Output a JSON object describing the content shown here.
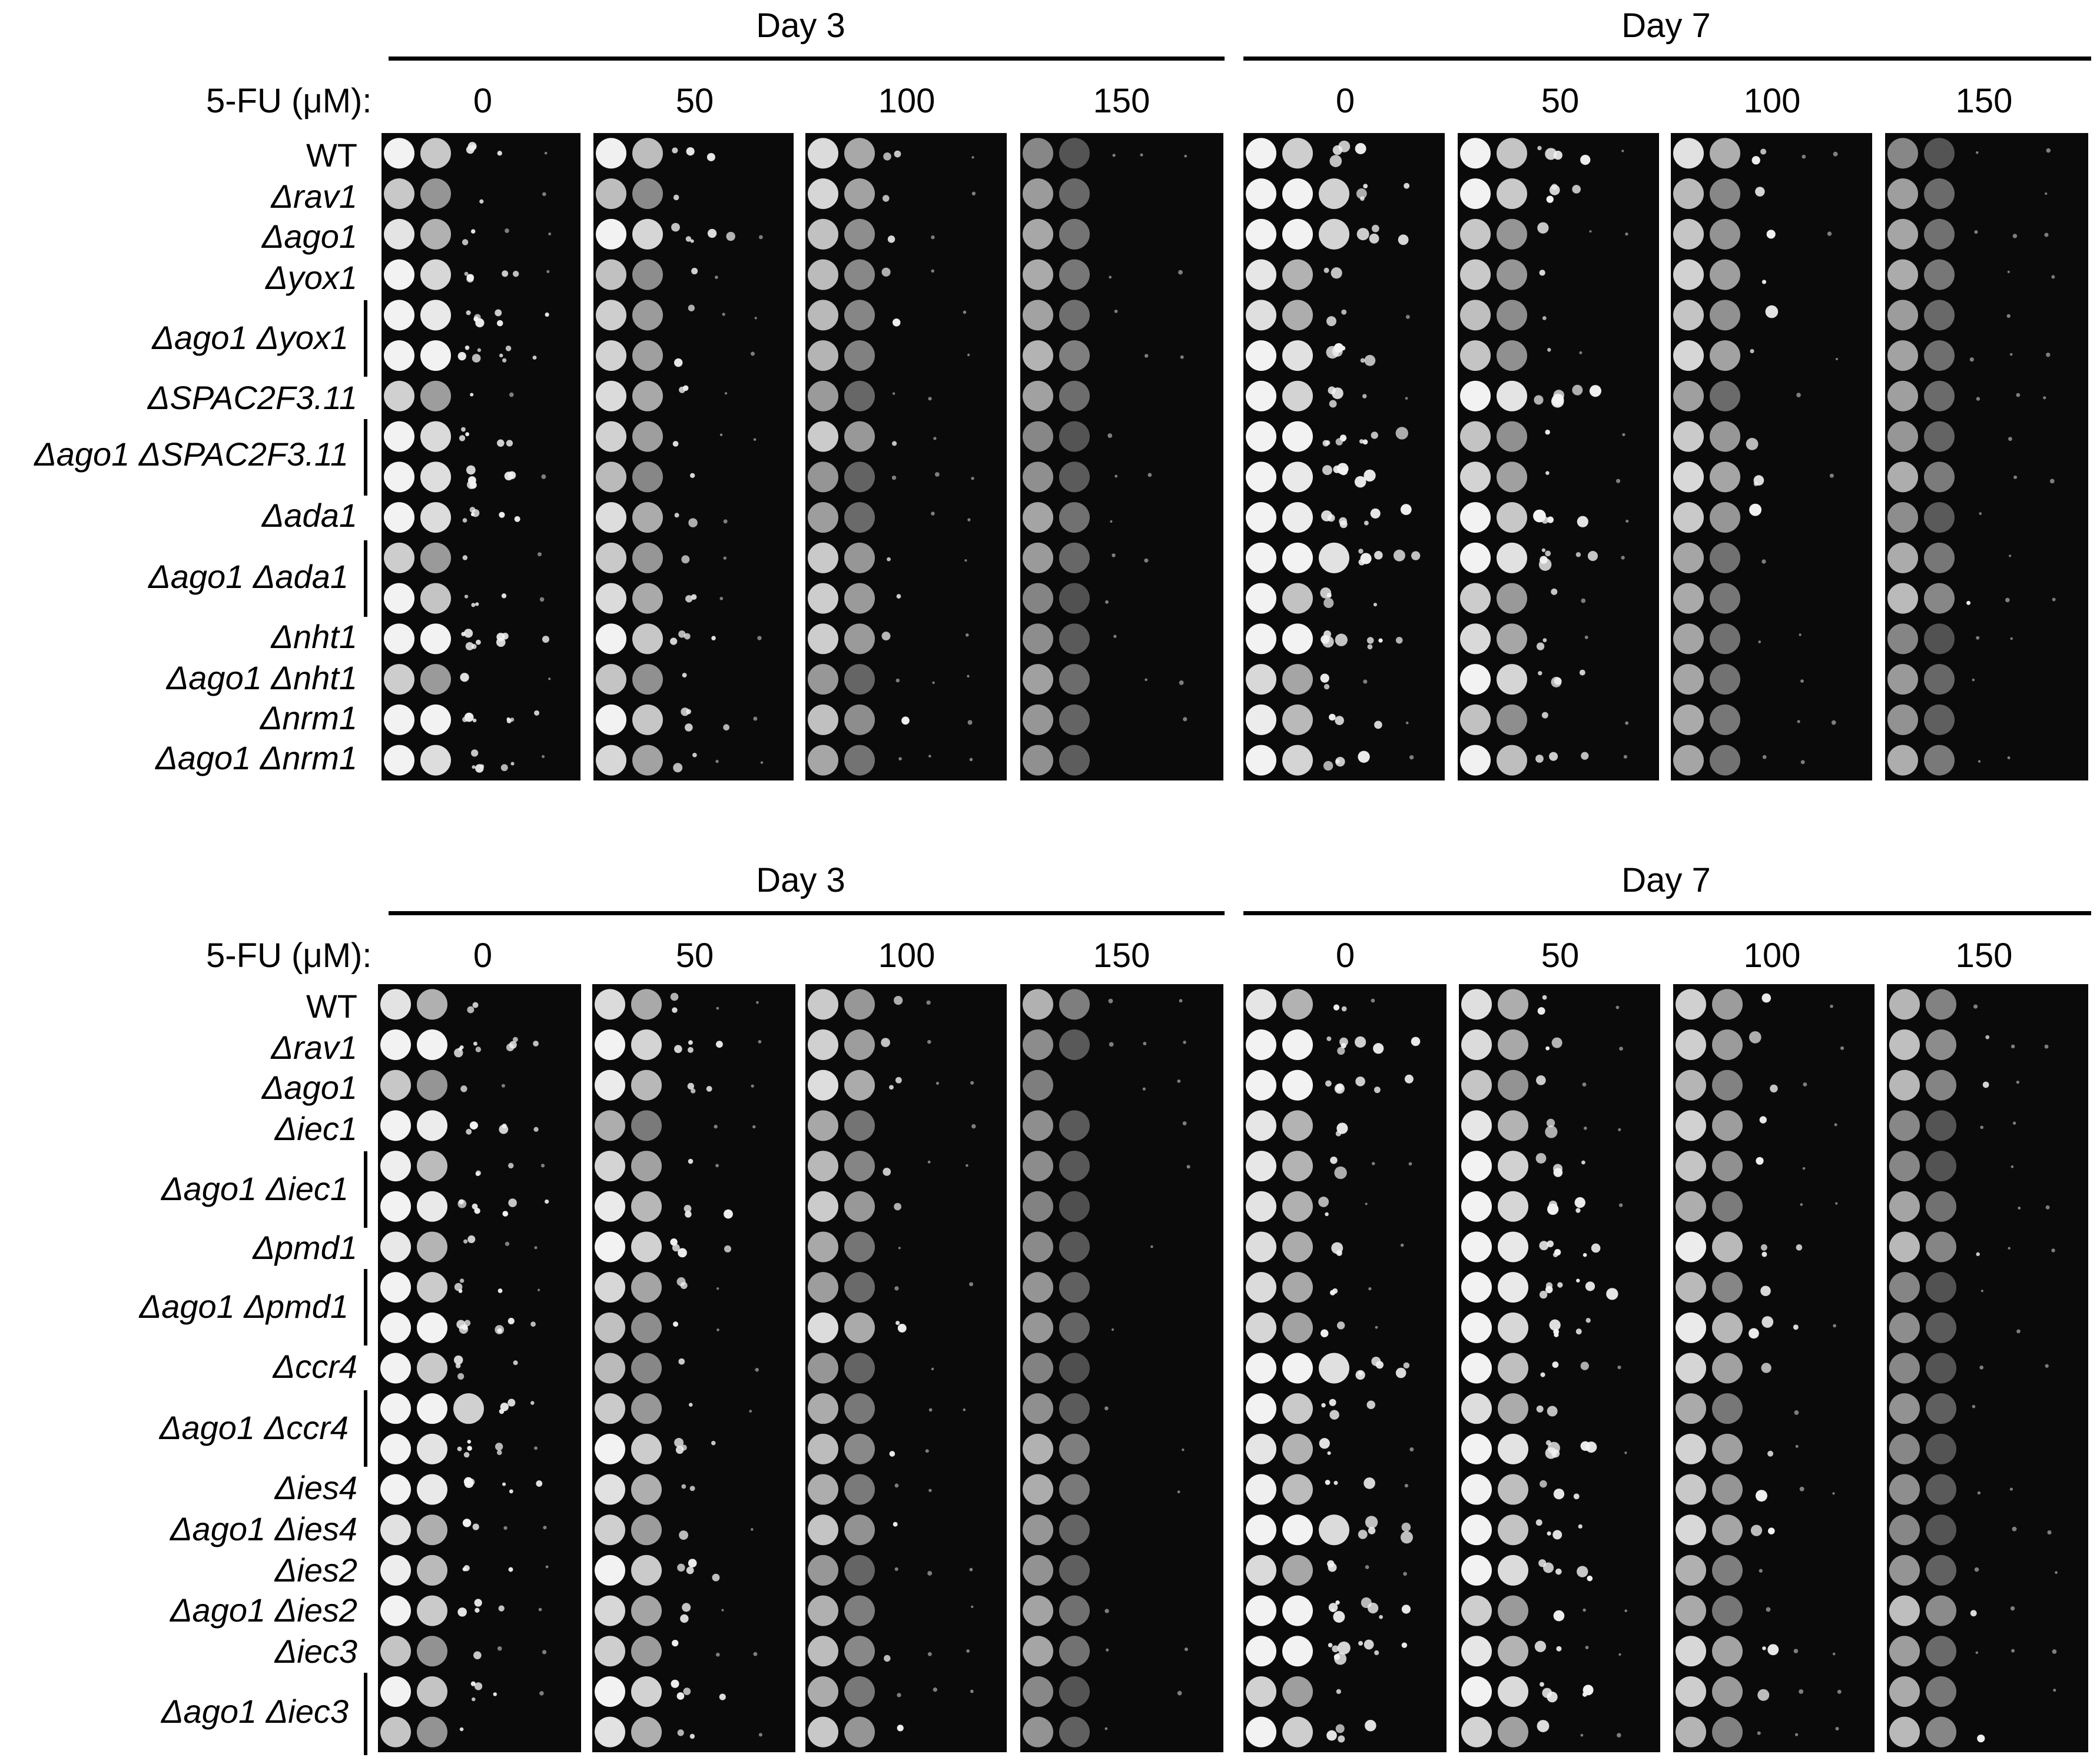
{
  "figure": {
    "colors": {
      "plate_background": "#0a0a0a",
      "colony": "#f2f2f2",
      "text": "#000000"
    },
    "treatment_label": "5-FU (μM):",
    "panels": [
      {
        "id": "top",
        "day_headers": [
          "Day 3",
          "Day 7"
        ],
        "concentrations": [
          "0",
          "50",
          "100",
          "150"
        ],
        "strain_labels": [
          {
            "text": "WT",
            "italic": false
          },
          {
            "text": "Δrav1",
            "italic": true
          },
          {
            "text": "Δago1",
            "italic": true
          },
          {
            "text": "Δyox1",
            "italic": true
          },
          {
            "text": "Δago1 Δyox1",
            "italic": true
          },
          {
            "text": "ΔSPAC2F3.11",
            "italic": true
          },
          {
            "text": "Δago1 ΔSPAC2F3.11",
            "italic": true
          },
          {
            "text": "Δada1",
            "italic": true
          },
          {
            "text": "Δago1 Δada1",
            "italic": true
          },
          {
            "text": "Δnht1",
            "italic": true
          },
          {
            "text": "Δago1 Δnht1",
            "italic": true
          },
          {
            "text": "Δnrm1",
            "italic": true
          },
          {
            "text": "Δago1 Δnrm1",
            "italic": true
          }
        ]
      },
      {
        "id": "bottom",
        "day_headers": [
          "Day 3",
          "Day 7"
        ],
        "concentrations": [
          "0",
          "50",
          "100",
          "150"
        ],
        "strain_labels": [
          {
            "text": "WT",
            "italic": false
          },
          {
            "text": "Δrav1",
            "italic": true
          },
          {
            "text": "Δago1",
            "italic": true
          },
          {
            "text": "Δiec1",
            "italic": true
          },
          {
            "text": "Δago1 Δiec1",
            "italic": true
          },
          {
            "text": "Δpmd1",
            "italic": true
          },
          {
            "text": "Δago1 Δpmd1",
            "italic": true
          },
          {
            "text": "Δccr4",
            "italic": true
          },
          {
            "text": "Δago1 Δccr4",
            "italic": true
          },
          {
            "text": "Δies4",
            "italic": true
          },
          {
            "text": "Δago1 Δies4",
            "italic": true
          },
          {
            "text": "Δies2",
            "italic": true
          },
          {
            "text": "Δago1 Δies2",
            "italic": true
          },
          {
            "text": "Δiec3",
            "italic": true
          },
          {
            "text": "Δago1 Δiec3",
            "italic": true
          }
        ]
      }
    ]
  }
}
